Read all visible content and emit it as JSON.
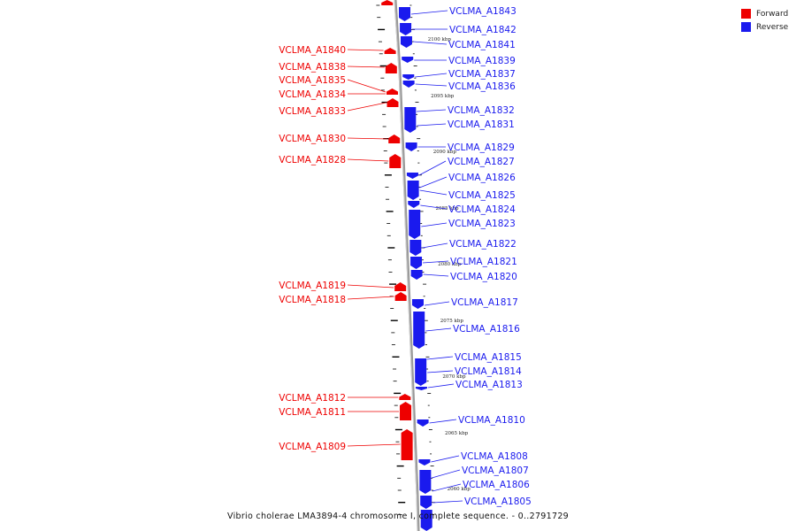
{
  "title": "Vibrio cholerae LMA3894-4 chromosome I, complete sequence. - 0..2791729",
  "colors": {
    "forward": "#ee0000",
    "reverse": "#1a1aee",
    "backbone": "#aaaaaa"
  },
  "legend": [
    {
      "label": "Forward",
      "color": "#ee0000"
    },
    {
      "label": "Reverse",
      "color": "#1a1aee"
    }
  ],
  "scale_labels": [
    "2100 kbp",
    "2095 kbp",
    "2090 kbp",
    "2085 kbp",
    "2080 kbp",
    "2075 kbp",
    "2070 kbp",
    "2065 kbp",
    "2060 kbp"
  ],
  "forward_genes": [
    "VCLMA_A1840",
    "VCLMA_A1838",
    "VCLMA_A1835",
    "VCLMA_A1834",
    "VCLMA_A1833",
    "VCLMA_A1830",
    "VCLMA_A1828",
    "VCLMA_A1819",
    "VCLMA_A1818",
    "VCLMA_A1812",
    "VCLMA_A1811",
    "VCLMA_A1809"
  ],
  "reverse_genes": [
    "VCLMA_A1843",
    "VCLMA_A1842",
    "VCLMA_A1841",
    "VCLMA_A1839",
    "VCLMA_A1837",
    "VCLMA_A1836",
    "VCLMA_A1832",
    "VCLMA_A1831",
    "VCLMA_A1829",
    "VCLMA_A1827",
    "VCLMA_A1826",
    "VCLMA_A1825",
    "VCLMA_A1824",
    "VCLMA_A1823",
    "VCLMA_A1822",
    "VCLMA_A1821",
    "VCLMA_A1820",
    "VCLMA_A1817",
    "VCLMA_A1816",
    "VCLMA_A1815",
    "VCLMA_A1814",
    "VCLMA_A1813",
    "VCLMA_A1810",
    "VCLMA_A1808",
    "VCLMA_A1807",
    "VCLMA_A1806",
    "VCLMA_A1805"
  ]
}
